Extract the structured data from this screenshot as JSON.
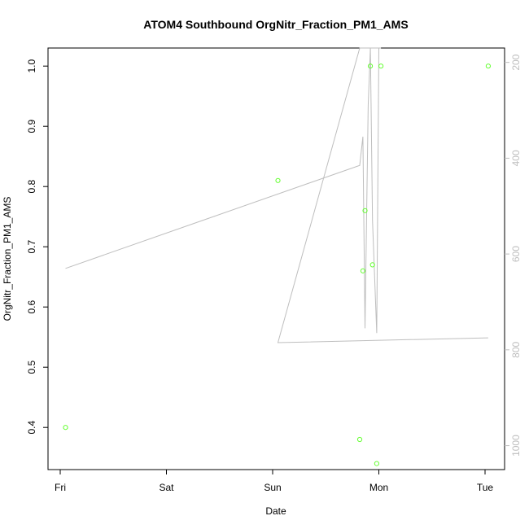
{
  "chart_data": {
    "type": "scatter",
    "title": "ATOM4 Southbound OrgNitr_Fraction_PM1_AMS",
    "xlabel": "Date",
    "ylabel": "OrgNitr_Fraction_PM1_AMS",
    "x_ticks": [
      "Fri",
      "Sat",
      "Sun",
      "Mon",
      "Tue"
    ],
    "y_ticks": [
      "0.4",
      "0.5",
      "0.6",
      "0.7",
      "0.8",
      "0.9",
      "1.0"
    ],
    "ylim": [
      0.33,
      1.03
    ],
    "y2_ticks": [
      "200",
      "400",
      "600",
      "800",
      "1000"
    ],
    "y2lim": [
      1050,
      170
    ],
    "y2_reversed": true,
    "grid": false,
    "colors": {
      "points": "#66ff33",
      "line": "#bebebe",
      "right_axis": "#bebebe",
      "axis": "#000000"
    },
    "points": [
      {
        "x": 0.05,
        "y": 0.4
      },
      {
        "x": 2.05,
        "y": 0.81
      },
      {
        "x": 2.82,
        "y": 0.38
      },
      {
        "x": 2.85,
        "y": 0.66
      },
      {
        "x": 2.87,
        "y": 0.76
      },
      {
        "x": 2.92,
        "y": 1.0
      },
      {
        "x": 2.94,
        "y": 0.67
      },
      {
        "x": 2.98,
        "y": 0.34
      },
      {
        "x": 3.02,
        "y": 1.0
      },
      {
        "x": 4.03,
        "y": 1.0
      }
    ],
    "line_series": [
      {
        "x": 0.05,
        "y": 630
      },
      {
        "x": 2.82,
        "y": 415
      },
      {
        "x": 2.85,
        "y": 355
      },
      {
        "x": 2.87,
        "y": 755
      },
      {
        "x": 2.9,
        "y": 290
      },
      {
        "x": 2.92,
        "y": 170
      },
      {
        "x": 2.94,
        "y": 530
      },
      {
        "x": 2.98,
        "y": 765
      },
      {
        "x": 3.0,
        "y": 170
      },
      {
        "x": 3.02,
        "y": 170
      },
      {
        "x": 2.82,
        "y": 170
      },
      {
        "x": 2.05,
        "y": 785
      },
      {
        "x": 4.03,
        "y": 775
      }
    ]
  }
}
